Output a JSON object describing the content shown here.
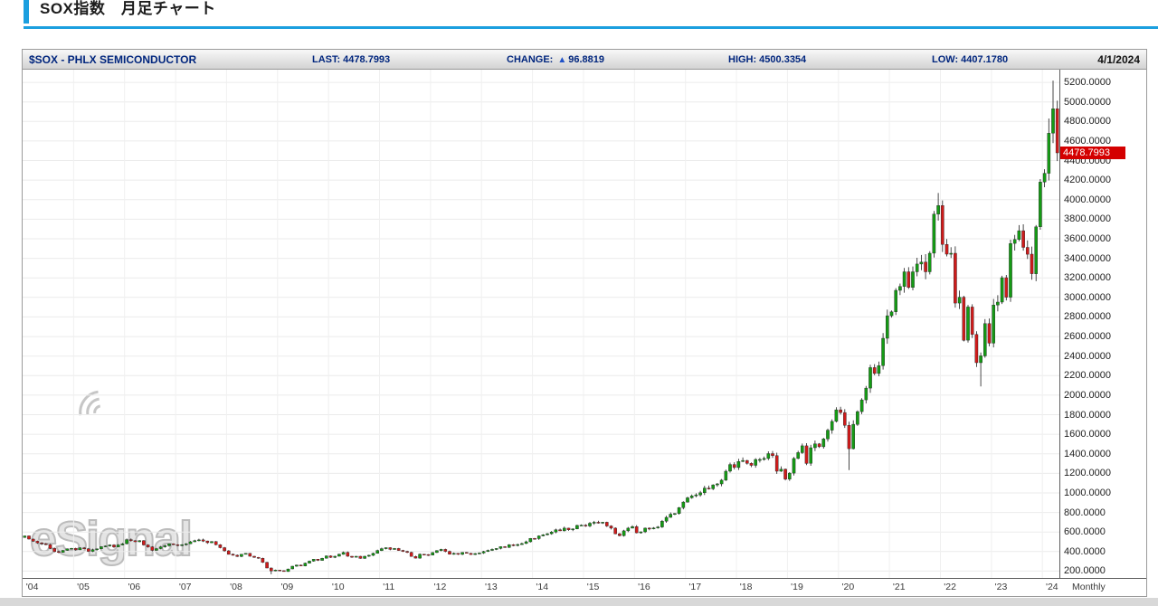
{
  "page": {
    "title": "SOX指数　月足チャート",
    "accent_color": "#1b9fdf"
  },
  "quote_bar": {
    "symbol": "$SOX - PHLX SEMICONDUCTOR",
    "last_label": "LAST:",
    "last": "4478.7993",
    "change_label": "CHANGE:",
    "change_arrow": "▲",
    "change": "96.8819",
    "high_label": "HIGH:",
    "high": "4500.3354",
    "low_label": "LOW:",
    "low": "4407.1780",
    "date": "4/1/2024"
  },
  "watermark": {
    "text": "eSignal"
  },
  "chart_data": {
    "type": "candlestick",
    "title": "$SOX - PHLX SEMICONDUCTOR",
    "interval": "Monthly",
    "xlabel": "",
    "ylabel": "",
    "start": "2004-01",
    "end": "2024-04",
    "ylim": [
      130,
      5330
    ],
    "grid": true,
    "last": 4478.7993,
    "last_price_label": "4478.7993",
    "colors": {
      "up": "#149b14",
      "down": "#cf1b1b",
      "wick": "#1c1c1c",
      "last_tag_bg": "#d40000"
    },
    "x_tick_labels": [
      "'04",
      "'05",
      "'06",
      "'07",
      "'08",
      "'09",
      "'10",
      "'11",
      "'12",
      "'13",
      "'14",
      "'15",
      "'16",
      "'17",
      "'18",
      "'19",
      "'20",
      "'21",
      "'22",
      "'23",
      "'24"
    ],
    "y_tick_labels": [
      "200.0000",
      "400.0000",
      "600.0000",
      "800.0000",
      "1000.0000",
      "1200.0000",
      "1400.0000",
      "1600.0000",
      "1800.0000",
      "2000.0000",
      "2200.0000",
      "2400.0000",
      "2600.0000",
      "2800.0000",
      "3000.0000",
      "3200.0000",
      "3400.0000",
      "3600.0000",
      "3800.0000",
      "4000.0000",
      "4200.0000",
      "4400.0000",
      "4600.0000",
      "4800.0000",
      "5000.0000",
      "5200.0000"
    ],
    "closes": [
      560,
      528,
      506,
      489,
      479,
      470,
      432,
      400,
      392,
      412,
      428,
      433,
      418,
      438,
      428,
      402,
      420,
      428,
      450,
      458,
      468,
      448,
      468,
      480,
      522,
      512,
      500,
      512,
      468,
      448,
      412,
      430,
      448,
      460,
      480,
      470,
      462,
      470,
      480,
      500,
      512,
      520,
      508,
      490,
      502,
      470,
      440,
      408,
      372,
      362,
      350,
      372,
      382,
      352,
      340,
      332,
      290,
      232,
      202,
      211,
      205,
      196,
      222,
      250,
      262,
      252,
      282,
      302,
      322,
      310,
      332,
      356,
      340,
      352,
      372,
      392,
      352,
      342,
      352,
      330,
      352,
      362,
      382,
      411,
      430,
      440,
      422,
      432,
      412,
      402,
      392,
      350,
      332,
      372,
      370,
      364,
      390,
      410,
      422,
      402,
      372,
      382,
      372,
      392,
      382,
      370,
      380,
      385,
      400,
      412,
      422,
      432,
      450,
      442,
      470,
      462,
      472,
      482,
      500,
      535,
      532,
      560,
      572,
      582,
      600,
      622,
      612,
      640,
      622,
      632,
      668,
      670,
      662,
      690,
      700,
      692,
      700,
      662,
      640,
      582,
      562,
      612,
      640,
      655,
      592,
      602,
      640,
      632,
      642,
      652,
      710,
      750,
      782,
      790,
      850,
      906,
      950,
      970,
      980,
      1002,
      1050,
      1042,
      1082,
      1092,
      1130,
      1222,
      1290,
      1260,
      1322,
      1332,
      1302,
      1282,
      1342,
      1342,
      1352,
      1402,
      1382,
      1222,
      1242,
      1141,
      1202,
      1352,
      1412,
      1482,
      1302,
      1462,
      1502,
      1472,
      1552,
      1642,
      1732,
      1850,
      1822,
      1692,
      1452,
      1702,
      1832,
      1952,
      2072,
      2282,
      2222,
      2302,
      2582,
      2812,
      2852,
      3072,
      3112,
      3262,
      3102,
      3262,
      3342,
      3362,
      3262,
      3452,
      3852,
      3940,
      3542,
      3442,
      3452,
      2942,
      3002,
      2562,
      2902,
      2622,
      2332,
      2402,
      2732,
      2532,
      2922,
      2952,
      3202,
      3002,
      3552,
      3592,
      3682,
      3512,
      3442,
      3242,
      3722,
      4180,
      4270,
      4680,
      4930,
      4478.7993
    ],
    "wick_overrides": {
      "high": {
        "215": 4068,
        "241": 4830,
        "242": 5218
      },
      "low": {
        "58": 168,
        "194": 1234,
        "225": 2090,
        "243": 4395
      }
    }
  }
}
